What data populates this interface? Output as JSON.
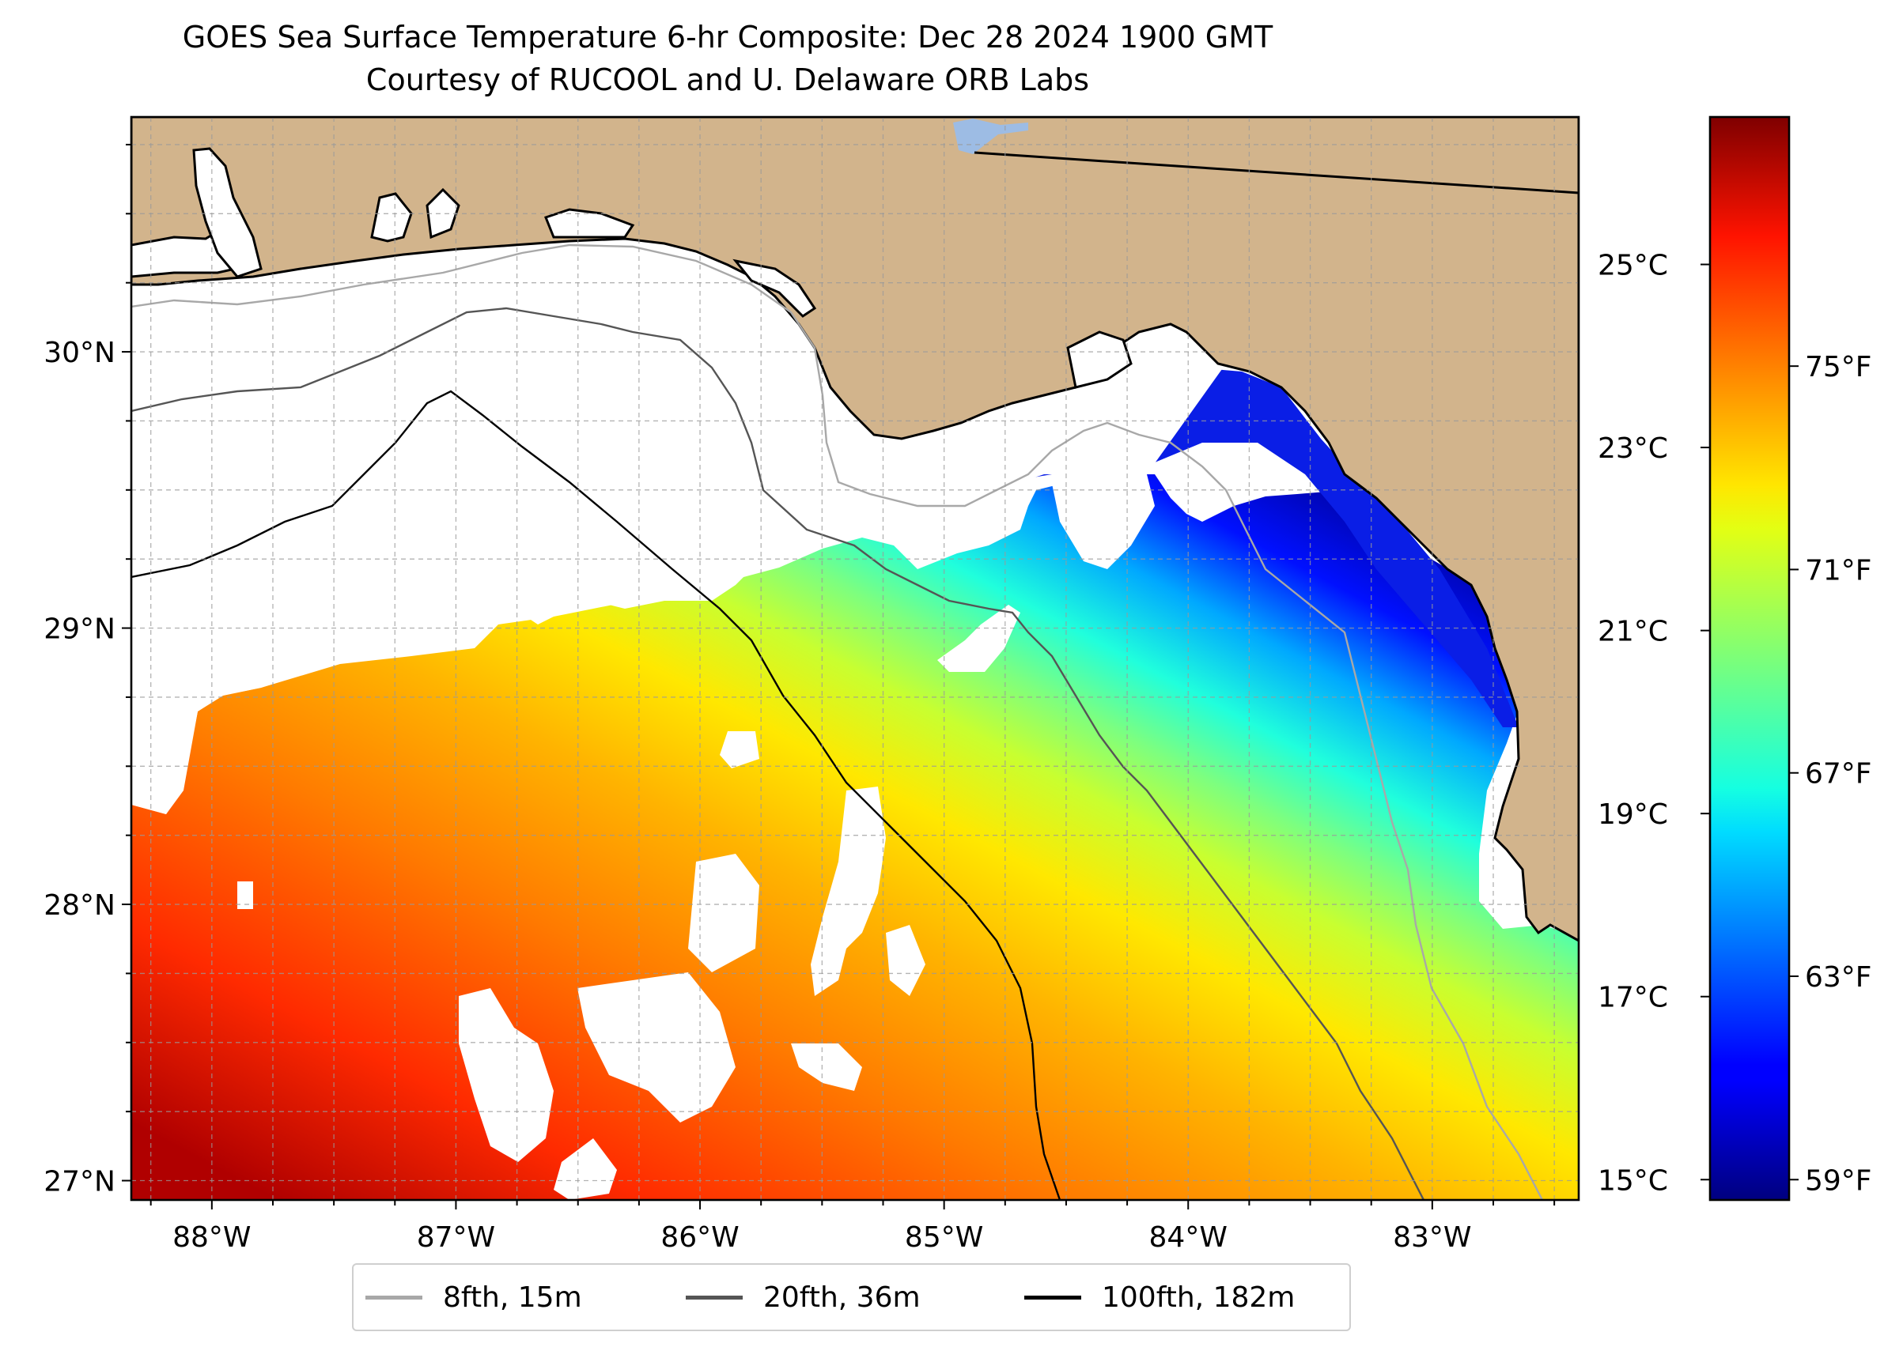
{
  "title": {
    "line1": "GOES Sea Surface Temperature 6-hr Composite: Dec 28 2024 1900 GMT",
    "line2": "Courtesy of RUCOOL and U. Delaware ORB Labs"
  },
  "map": {
    "lon_range": [
      -88.33,
      -82.4
    ],
    "lat_range": [
      26.93,
      30.85
    ],
    "lon_ticks": [
      {
        "value": -88,
        "label": "88°W"
      },
      {
        "value": -87,
        "label": "87°W"
      },
      {
        "value": -86,
        "label": "86°W"
      },
      {
        "value": -85,
        "label": "85°W"
      },
      {
        "value": -84,
        "label": "84°W"
      },
      {
        "value": -83,
        "label": "83°W"
      }
    ],
    "lat_ticks": [
      {
        "value": 30,
        "label": "30°N"
      },
      {
        "value": 29,
        "label": "29°N"
      },
      {
        "value": 28,
        "label": "28°N"
      },
      {
        "value": 27,
        "label": "27°N"
      }
    ],
    "grid": "dashed, 0.25° spacing",
    "colors": {
      "land": "#D2B48C",
      "ocean_no_data": "#ffffff",
      "lake": "#9DBCE4",
      "coastline": "#000000"
    }
  },
  "colorbar": {
    "cmap": "jet",
    "celsius_ticks": [
      {
        "value": 25,
        "label": "25°C"
      },
      {
        "value": 23,
        "label": "23°C"
      },
      {
        "value": 21,
        "label": "21°C"
      },
      {
        "value": 19,
        "label": "19°C"
      },
      {
        "value": 17,
        "label": "17°C"
      },
      {
        "value": 15,
        "label": "15°C"
      }
    ],
    "fahrenheit_ticks": [
      {
        "value": 75,
        "label": "75°F"
      },
      {
        "value": 71,
        "label": "71°F"
      },
      {
        "value": 67,
        "label": "67°F"
      },
      {
        "value": 63,
        "label": "63°F"
      },
      {
        "value": 59,
        "label": "59°F"
      }
    ],
    "range_f": [
      58.6,
      79.9
    ]
  },
  "legend": {
    "items": [
      {
        "label": "8fth, 15m",
        "color": "#a8a8a8"
      },
      {
        "label": "20fth, 36m",
        "color": "#555555"
      },
      {
        "label": "100fth, 182m",
        "color": "#000000"
      }
    ]
  }
}
